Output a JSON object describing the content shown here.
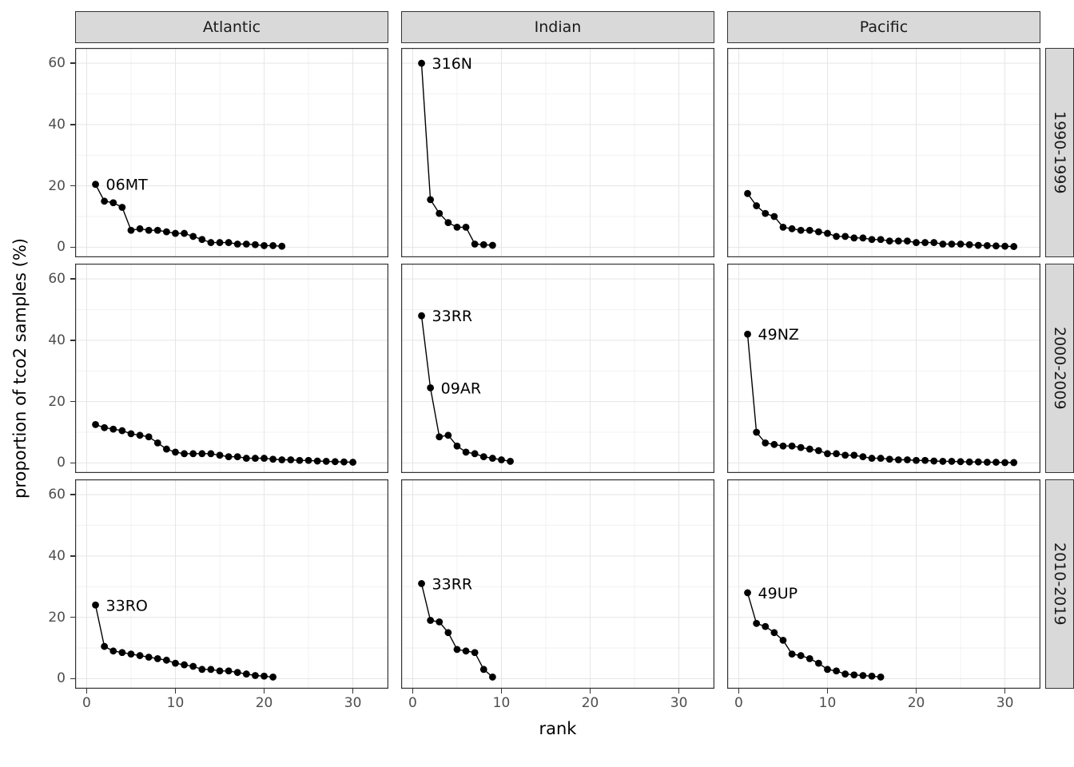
{
  "chart_data": {
    "type": "line",
    "title": "",
    "xlabel": "rank",
    "ylabel": "proportion of tco2 samples (%)",
    "legend": "none",
    "grid": true,
    "x_ticks": [
      0,
      10,
      20,
      30
    ],
    "y_ticks": [
      0,
      20,
      40,
      60
    ],
    "x_minor": [
      5,
      15,
      25
    ],
    "y_minor": [
      10,
      30,
      50
    ],
    "xlim": [
      -1.3,
      34
    ],
    "ylim": [
      -3.3,
      65
    ],
    "col_facets": [
      "Atlantic",
      "Indian",
      "Pacific"
    ],
    "row_facets": [
      "1990-1999",
      "2000-2009",
      "2010-2019"
    ],
    "colors": {
      "point": "#000000",
      "line": "#000000",
      "strip_bg": "#d9d9d9",
      "panel_border": "#333333",
      "grid_major": "#e5e5e5",
      "grid_minor": "#f2f2f2",
      "tick_text": "#4d4d4d"
    },
    "panels": [
      {
        "ocean": "Atlantic",
        "decade": "1990-1999",
        "values": [
          20.5,
          15,
          14.5,
          13,
          5.5,
          6,
          5.5,
          5.5,
          5,
          4.5,
          4.5,
          3.5,
          2.5,
          1.5,
          1.5,
          1.5,
          1,
          1,
          0.8,
          0.5,
          0.5,
          0.3
        ],
        "labels": [
          {
            "text": "06MT",
            "rank": 1
          }
        ]
      },
      {
        "ocean": "Indian",
        "decade": "1990-1999",
        "values": [
          60,
          15.5,
          11,
          8,
          6.5,
          6.5,
          1,
          0.8,
          0.6
        ],
        "labels": [
          {
            "text": "316N",
            "rank": 1
          }
        ]
      },
      {
        "ocean": "Pacific",
        "decade": "1990-1999",
        "values": [
          17.5,
          13.5,
          11,
          10,
          6.5,
          6,
          5.5,
          5.5,
          5,
          4.5,
          3.5,
          3.5,
          3,
          3,
          2.5,
          2.5,
          2,
          2,
          2,
          1.5,
          1.5,
          1.5,
          1,
          1,
          1,
          0.8,
          0.6,
          0.5,
          0.4,
          0.3,
          0.2
        ],
        "labels": []
      },
      {
        "ocean": "Atlantic",
        "decade": "2000-2009",
        "values": [
          12.5,
          11.5,
          11,
          10.5,
          9.5,
          9,
          8.5,
          6.5,
          4.5,
          3.5,
          3,
          3,
          3,
          3,
          2.5,
          2,
          2,
          1.5,
          1.5,
          1.5,
          1.2,
          1,
          1,
          0.8,
          0.8,
          0.6,
          0.5,
          0.4,
          0.3,
          0.2
        ],
        "labels": []
      },
      {
        "ocean": "Indian",
        "decade": "2000-2009",
        "values": [
          48,
          24.5,
          8.5,
          9,
          5.5,
          3.5,
          3,
          2,
          1.5,
          1,
          0.5
        ],
        "labels": [
          {
            "text": "33RR",
            "rank": 1
          },
          {
            "text": "09AR",
            "rank": 2
          }
        ]
      },
      {
        "ocean": "Pacific",
        "decade": "2000-2009",
        "values": [
          42,
          10,
          6.5,
          6,
          5.5,
          5.5,
          5,
          4.5,
          4,
          3,
          3,
          2.5,
          2.5,
          2,
          1.5,
          1.5,
          1.2,
          1,
          1,
          0.8,
          0.8,
          0.6,
          0.5,
          0.5,
          0.4,
          0.3,
          0.3,
          0.2,
          0.2,
          0.1,
          0.1
        ],
        "labels": [
          {
            "text": "49NZ",
            "rank": 1
          }
        ]
      },
      {
        "ocean": "Atlantic",
        "decade": "2010-2019",
        "values": [
          24,
          10.5,
          9,
          8.5,
          8,
          7.5,
          7,
          6.5,
          6,
          5,
          4.5,
          4,
          3,
          3,
          2.5,
          2.5,
          2,
          1.5,
          1,
          0.8,
          0.5
        ],
        "labels": [
          {
            "text": "33RO",
            "rank": 1
          }
        ]
      },
      {
        "ocean": "Indian",
        "decade": "2010-2019",
        "values": [
          31,
          19,
          18.5,
          15,
          9.5,
          9,
          8.5,
          3,
          0.5
        ],
        "labels": [
          {
            "text": "33RR",
            "rank": 1
          }
        ]
      },
      {
        "ocean": "Pacific",
        "decade": "2010-2019",
        "values": [
          28,
          18,
          17,
          15,
          12.5,
          8,
          7.5,
          6.5,
          5,
          3,
          2.5,
          1.5,
          1.2,
          1,
          0.8,
          0.5
        ],
        "labels": [
          {
            "text": "49UP",
            "rank": 1
          }
        ]
      }
    ]
  }
}
